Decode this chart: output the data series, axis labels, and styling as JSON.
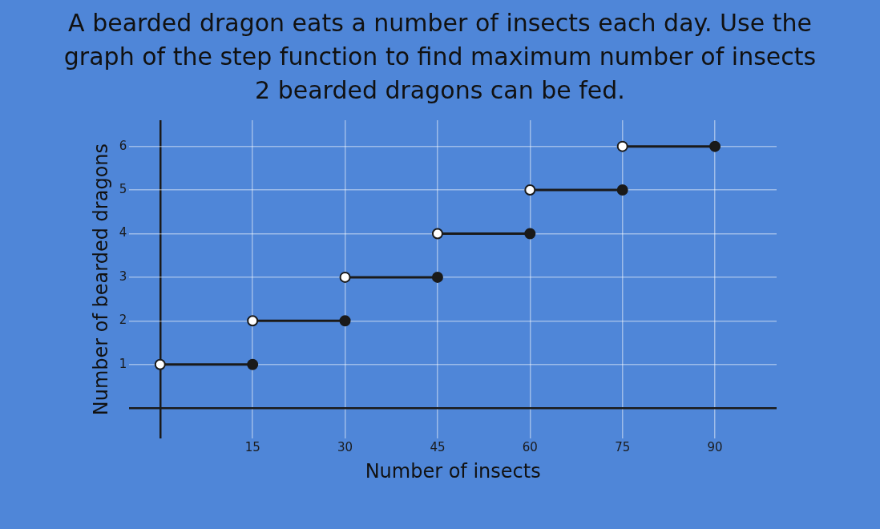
{
  "chart_data": {
    "type": "step",
    "title": "A bearded dragon eats a number of insects each day. Use the graph of the step function to find maximum number of insects 2 bearded dragons can be fed.",
    "xlabel": "Number of insects",
    "ylabel": "Number of bearded dragons",
    "xlim": [
      -5,
      100
    ],
    "xticks": [
      {
        "value": 0,
        "label": null
      },
      15,
      30,
      45,
      60,
      75,
      90
    ],
    "ylim": [
      -0.7,
      6.6
    ],
    "yticks": [
      {
        "value": 0,
        "label": null
      },
      1,
      2,
      3,
      4,
      5,
      6
    ],
    "grid": true,
    "marker": "circle",
    "legend": false,
    "series": [
      {
        "color": "#1a1a1a",
        "x": [
          0,
          15
        ],
        "values": [
          1,
          1
        ]
      },
      {
        "color": "#1a1a1a",
        "x": [
          15,
          30
        ],
        "values": [
          2,
          2
        ]
      },
      {
        "color": "#1a1a1a",
        "x": [
          30,
          45
        ],
        "values": [
          3,
          3
        ]
      },
      {
        "color": "#1a1a1a",
        "x": [
          45,
          60
        ],
        "values": [
          4,
          4
        ]
      },
      {
        "color": "#1a1a1a",
        "x": [
          60,
          75
        ],
        "values": [
          5,
          5
        ]
      },
      {
        "color": "#1a1a1a",
        "x": [
          75,
          90
        ],
        "values": [
          6,
          6
        ]
      }
    ]
  }
}
